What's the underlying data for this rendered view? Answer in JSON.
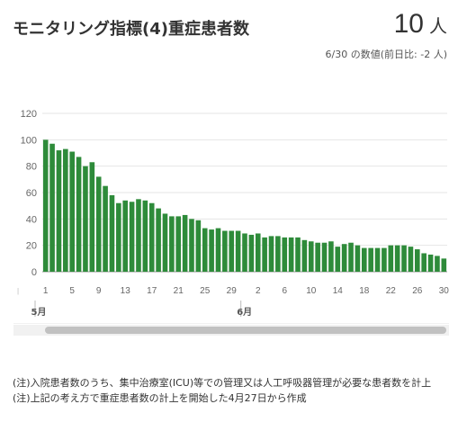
{
  "header": {
    "title": "モニタリング指標(4)重症患者数",
    "value": "10",
    "unit": "人",
    "sub": "6/30 の数値(前日比: -2 人)"
  },
  "notes": [
    "(注)入院患者数のうち、集中治療室(ICU)等での管理又は人工呼吸器管理が必要な患者数を計上",
    "(注)上記の考え方で重症患者数の計上を開始した4月27日から作成"
  ],
  "chart_data": {
    "type": "bar",
    "title": "",
    "xlabel": "",
    "ylabel": "",
    "ylim": [
      0,
      120
    ],
    "yticks": [
      0,
      20,
      40,
      60,
      80,
      100,
      120
    ],
    "grid": true,
    "color": "#2e8b3a",
    "x_tick_labels": [
      "1",
      "5",
      "9",
      "13",
      "17",
      "21",
      "25",
      "29",
      "2",
      "6",
      "10",
      "14",
      "18",
      "22",
      "26",
      "30"
    ],
    "month_labels": [
      "5月",
      "6月"
    ],
    "categories": [
      "5/1",
      "5/2",
      "5/3",
      "5/4",
      "5/5",
      "5/6",
      "5/7",
      "5/8",
      "5/9",
      "5/10",
      "5/11",
      "5/12",
      "5/13",
      "5/14",
      "5/15",
      "5/16",
      "5/17",
      "5/18",
      "5/19",
      "5/20",
      "5/21",
      "5/22",
      "5/23",
      "5/24",
      "5/25",
      "5/26",
      "5/27",
      "5/28",
      "5/29",
      "5/30",
      "5/31",
      "6/1",
      "6/2",
      "6/3",
      "6/4",
      "6/5",
      "6/6",
      "6/7",
      "6/8",
      "6/9",
      "6/10",
      "6/11",
      "6/12",
      "6/13",
      "6/14",
      "6/15",
      "6/16",
      "6/17",
      "6/18",
      "6/19",
      "6/20",
      "6/21",
      "6/22",
      "6/23",
      "6/24",
      "6/25",
      "6/26",
      "6/27",
      "6/28",
      "6/29",
      "6/30"
    ],
    "values": [
      100,
      97,
      92,
      93,
      91,
      87,
      80,
      83,
      72,
      65,
      58,
      52,
      54,
      53,
      55,
      54,
      52,
      48,
      44,
      42,
      42,
      43,
      40,
      39,
      33,
      32,
      33,
      31,
      31,
      31,
      29,
      28,
      29,
      26,
      27,
      27,
      26,
      26,
      26,
      24,
      23,
      22,
      22,
      23,
      19,
      21,
      22,
      20,
      18,
      18,
      18,
      18,
      20,
      20,
      20,
      19,
      17,
      14,
      13,
      12,
      10
    ]
  }
}
